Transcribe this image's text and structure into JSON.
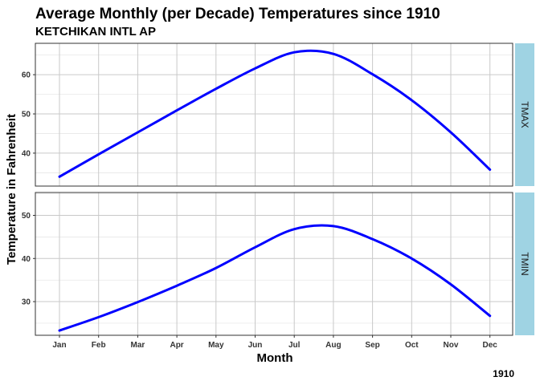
{
  "chart_data": {
    "type": "line",
    "title": "Average Monthly (per Decade) Temperatures since 1910",
    "subtitle": "KETCHIKAN INTL AP",
    "xlabel": "Month",
    "ylabel": "Temperature in Fahrenheit",
    "caption": "1910",
    "categories": [
      "Jan",
      "Feb",
      "Mar",
      "Apr",
      "May",
      "Jun",
      "Jul",
      "Aug",
      "Sep",
      "Oct",
      "Nov",
      "Dec"
    ],
    "grid": true,
    "line_color": "#0000ff",
    "strip_color": "#9fd3e3",
    "facets": [
      {
        "name": "TMAX",
        "ylim": [
          31.6,
          68
        ],
        "yticks": [
          40,
          50,
          60
        ],
        "values": [
          34.0,
          39.7,
          45.3,
          50.9,
          56.4,
          61.6,
          65.7,
          65.3,
          60.1,
          53.5,
          45.3,
          35.8
        ]
      },
      {
        "name": "TMIN",
        "ylim": [
          22.2,
          55.3
        ],
        "yticks": [
          30,
          40,
          50
        ],
        "values": [
          23.3,
          26.4,
          29.9,
          33.7,
          37.8,
          42.6,
          46.8,
          47.5,
          44.5,
          40.0,
          34.0,
          26.7
        ]
      }
    ]
  }
}
